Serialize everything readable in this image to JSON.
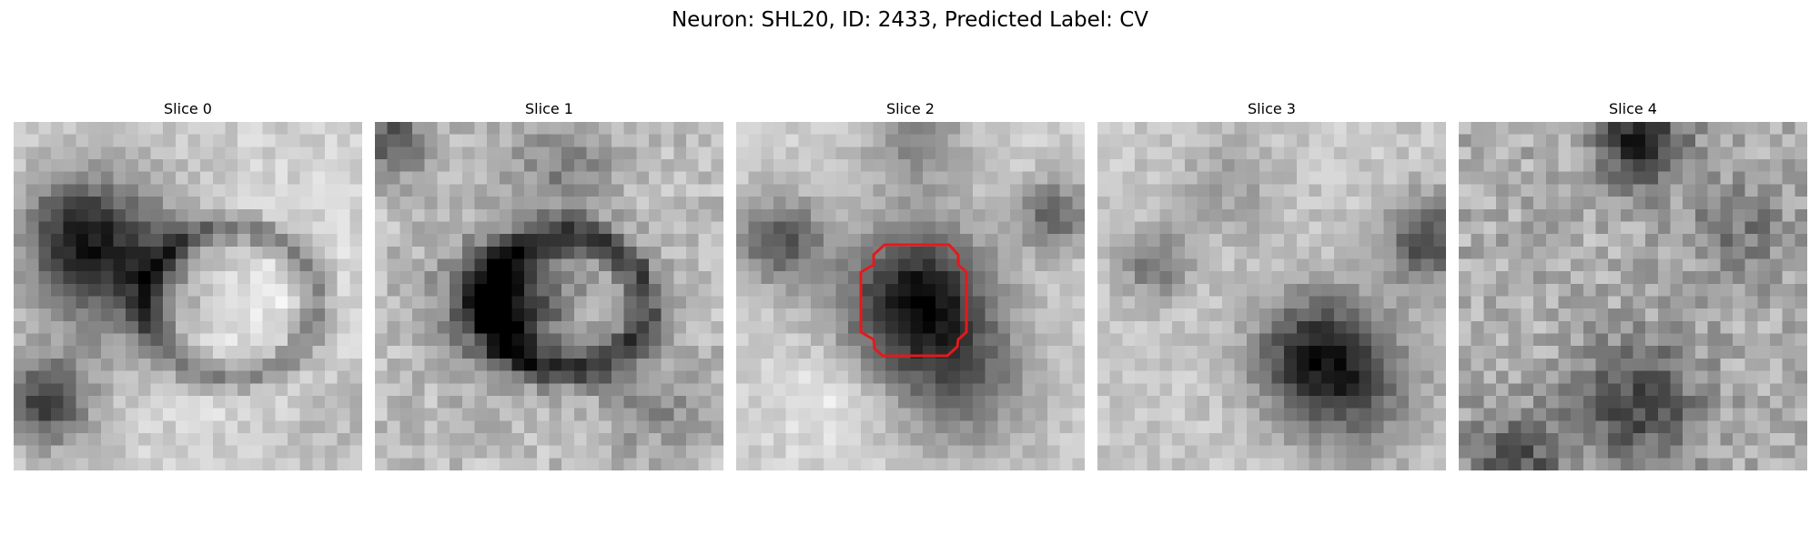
{
  "figure": {
    "title": "Neuron: SHL20, ID: 2433, Predicted Label: CV"
  },
  "slices": [
    {
      "label": "Slice 0"
    },
    {
      "label": "Slice 1"
    },
    {
      "label": "Slice 2"
    },
    {
      "label": "Slice 3"
    },
    {
      "label": "Slice 4"
    }
  ],
  "colors": {
    "mask_outline": "#e31a1c",
    "colormap": "gray"
  }
}
